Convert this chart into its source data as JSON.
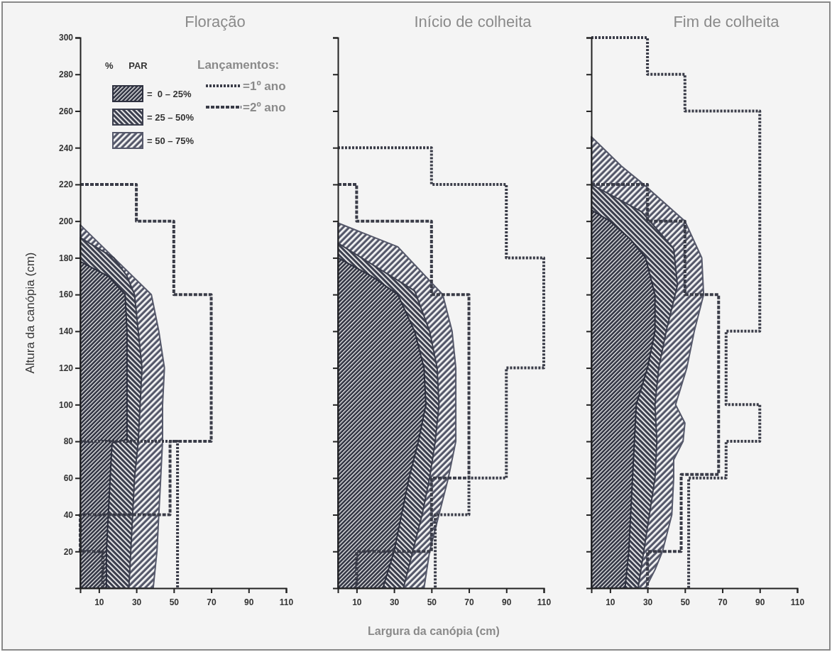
{
  "chart_data": [
    {
      "type": "area",
      "orientation": "horizontal",
      "title": "Floração",
      "ylabel": "Altura da canópia (cm)",
      "legend": "top",
      "legend_title": "%      PAR",
      "annotations": [
        "Lançamentos:"
      ],
      "xlim": [
        0,
        110
      ],
      "xticks": [
        10,
        30,
        50,
        70,
        90,
        110
      ],
      "ylim": [
        0,
        300
      ],
      "yticks": [
        20,
        40,
        60,
        80,
        100,
        120,
        140,
        160,
        180,
        200,
        220,
        240,
        260,
        280,
        300
      ],
      "series": [
        {
          "name": "=  0 – 25%",
          "color": "#2e3140",
          "x": [
            0,
            20,
            40,
            60,
            79,
            81,
            100,
            120,
            140,
            160,
            170,
            178
          ],
          "values": [
            14,
            14,
            15,
            16,
            17,
            25,
            25,
            25,
            25,
            24,
            15,
            0
          ]
        },
        {
          "name": "= 25 – 50%",
          "color": "#3c3f4e",
          "x": [
            0,
            20,
            40,
            60,
            80,
            100,
            120,
            140,
            160,
            170,
            180,
            191
          ],
          "values": [
            26,
            27,
            28,
            29,
            31,
            32,
            33,
            31,
            29,
            25,
            18,
            0
          ]
        },
        {
          "name": "= 50 – 75%",
          "color": "#55586a",
          "x": [
            0,
            20,
            40,
            60,
            80,
            100,
            120,
            140,
            160,
            198
          ],
          "values": [
            39,
            41,
            42,
            43,
            44,
            44,
            45,
            42,
            38,
            0
          ]
        },
        {
          "name": "=1º ano",
          "type": "line",
          "line_style": "dotted",
          "color": "#3a3c48",
          "x": [
            80,
            80,
            0
          ],
          "values": [
            0,
            52,
            52
          ]
        },
        {
          "name": "=2º ano",
          "type": "line",
          "line_style": "dashed",
          "color": "#3a3c48",
          "x": [
            220,
            220,
            200,
            200,
            160,
            160,
            80,
            80,
            40,
            40,
            20,
            20,
            0
          ],
          "values": [
            0,
            30,
            30,
            50,
            50,
            70,
            70,
            48,
            48,
            0,
            0,
            12,
            12
          ]
        }
      ]
    },
    {
      "type": "area",
      "orientation": "horizontal",
      "title": "Início de colheita",
      "xlabel": "Largura da canópia (cm)",
      "tick_labels": "x",
      "xlim": [
        0,
        110
      ],
      "xticks": [
        10,
        30,
        50,
        70,
        90,
        110
      ],
      "ylim": [
        0,
        300
      ],
      "yticks": [
        20,
        40,
        60,
        80,
        100,
        120,
        140,
        160,
        180,
        200,
        220,
        240,
        260,
        280,
        300
      ],
      "series": [
        {
          "color": "#2e3140",
          "x": [
            0,
            20,
            40,
            60,
            80,
            100,
            120,
            140,
            160,
            170,
            180
          ],
          "values": [
            24,
            30,
            34,
            38,
            43,
            47,
            46,
            41,
            32,
            18,
            0
          ]
        },
        {
          "color": "#3c3f4e",
          "x": [
            0,
            20,
            40,
            60,
            80,
            100,
            120,
            140,
            162,
            188
          ],
          "values": [
            35,
            40,
            45,
            49,
            52,
            54,
            53,
            49,
            41,
            0
          ]
        },
        {
          "color": "#55586a",
          "x": [
            0,
            20,
            40,
            60,
            80,
            100,
            120,
            140,
            160,
            186,
            199
          ],
          "values": [
            46,
            49,
            54,
            59,
            63,
            63,
            63,
            61,
            56,
            32,
            0
          ]
        },
        {
          "type": "line",
          "line_style": "dotted",
          "color": "#3a3c48",
          "x": [
            240,
            240,
            220,
            220,
            180,
            180,
            120,
            120,
            60,
            60,
            40,
            40,
            0
          ],
          "values": [
            0,
            50,
            50,
            90,
            90,
            110,
            110,
            90,
            90,
            70,
            70,
            52,
            52
          ]
        },
        {
          "type": "line",
          "line_style": "dashed",
          "color": "#3a3c48",
          "x": [
            220,
            220,
            200,
            200,
            160,
            160,
            60,
            60,
            20,
            20,
            0
          ],
          "values": [
            0,
            10,
            10,
            50,
            50,
            70,
            70,
            50,
            50,
            10,
            10
          ]
        }
      ]
    },
    {
      "type": "area",
      "orientation": "horizontal",
      "title": "Fim de colheita",
      "tick_labels": "x",
      "xlim": [
        0,
        110
      ],
      "xticks": [
        10,
        30,
        50,
        70,
        90,
        110
      ],
      "ylim": [
        0,
        300
      ],
      "yticks": [
        20,
        40,
        60,
        80,
        100,
        120,
        140,
        160,
        180,
        200,
        220,
        240,
        260,
        280,
        300
      ],
      "series": [
        {
          "color": "#2e3140",
          "x": [
            0,
            20,
            40,
            60,
            80,
            100,
            120,
            140,
            160,
            180,
            190,
            200,
            206
          ],
          "values": [
            18,
            20,
            21,
            22,
            23,
            24,
            30,
            34,
            34,
            29,
            21,
            10,
            0
          ]
        },
        {
          "color": "#3c3f4e",
          "x": [
            0,
            20,
            40,
            60,
            80,
            100,
            120,
            140,
            165,
            185,
            205,
            220
          ],
          "values": [
            25,
            28,
            31,
            34,
            35,
            34,
            36,
            40,
            46,
            44,
            27,
            0
          ]
        },
        {
          "color": "#55586a",
          "x": [
            0,
            10,
            20,
            40,
            60,
            70,
            80,
            90,
            100,
            120,
            140,
            160,
            180,
            200,
            220,
            230,
            246
          ],
          "values": [
            29,
            34,
            38,
            43,
            44,
            44,
            49,
            50,
            45,
            51,
            55,
            60,
            59,
            50,
            28,
            16,
            0
          ]
        },
        {
          "type": "line",
          "line_style": "dotted",
          "color": "#3a3c48",
          "x": [
            300,
            300,
            280,
            280,
            260,
            260,
            140,
            140,
            100,
            100,
            80,
            80,
            60,
            60,
            0
          ],
          "values": [
            0,
            30,
            30,
            50,
            50,
            90,
            90,
            72,
            72,
            90,
            90,
            72,
            72,
            52,
            52
          ]
        },
        {
          "type": "line",
          "line_style": "dashed",
          "color": "#3a3c48",
          "x": [
            220,
            220,
            200,
            200,
            160,
            160,
            62,
            62,
            20,
            20,
            0
          ],
          "values": [
            0,
            30,
            30,
            50,
            50,
            68,
            68,
            48,
            48,
            30,
            30
          ]
        }
      ]
    }
  ]
}
